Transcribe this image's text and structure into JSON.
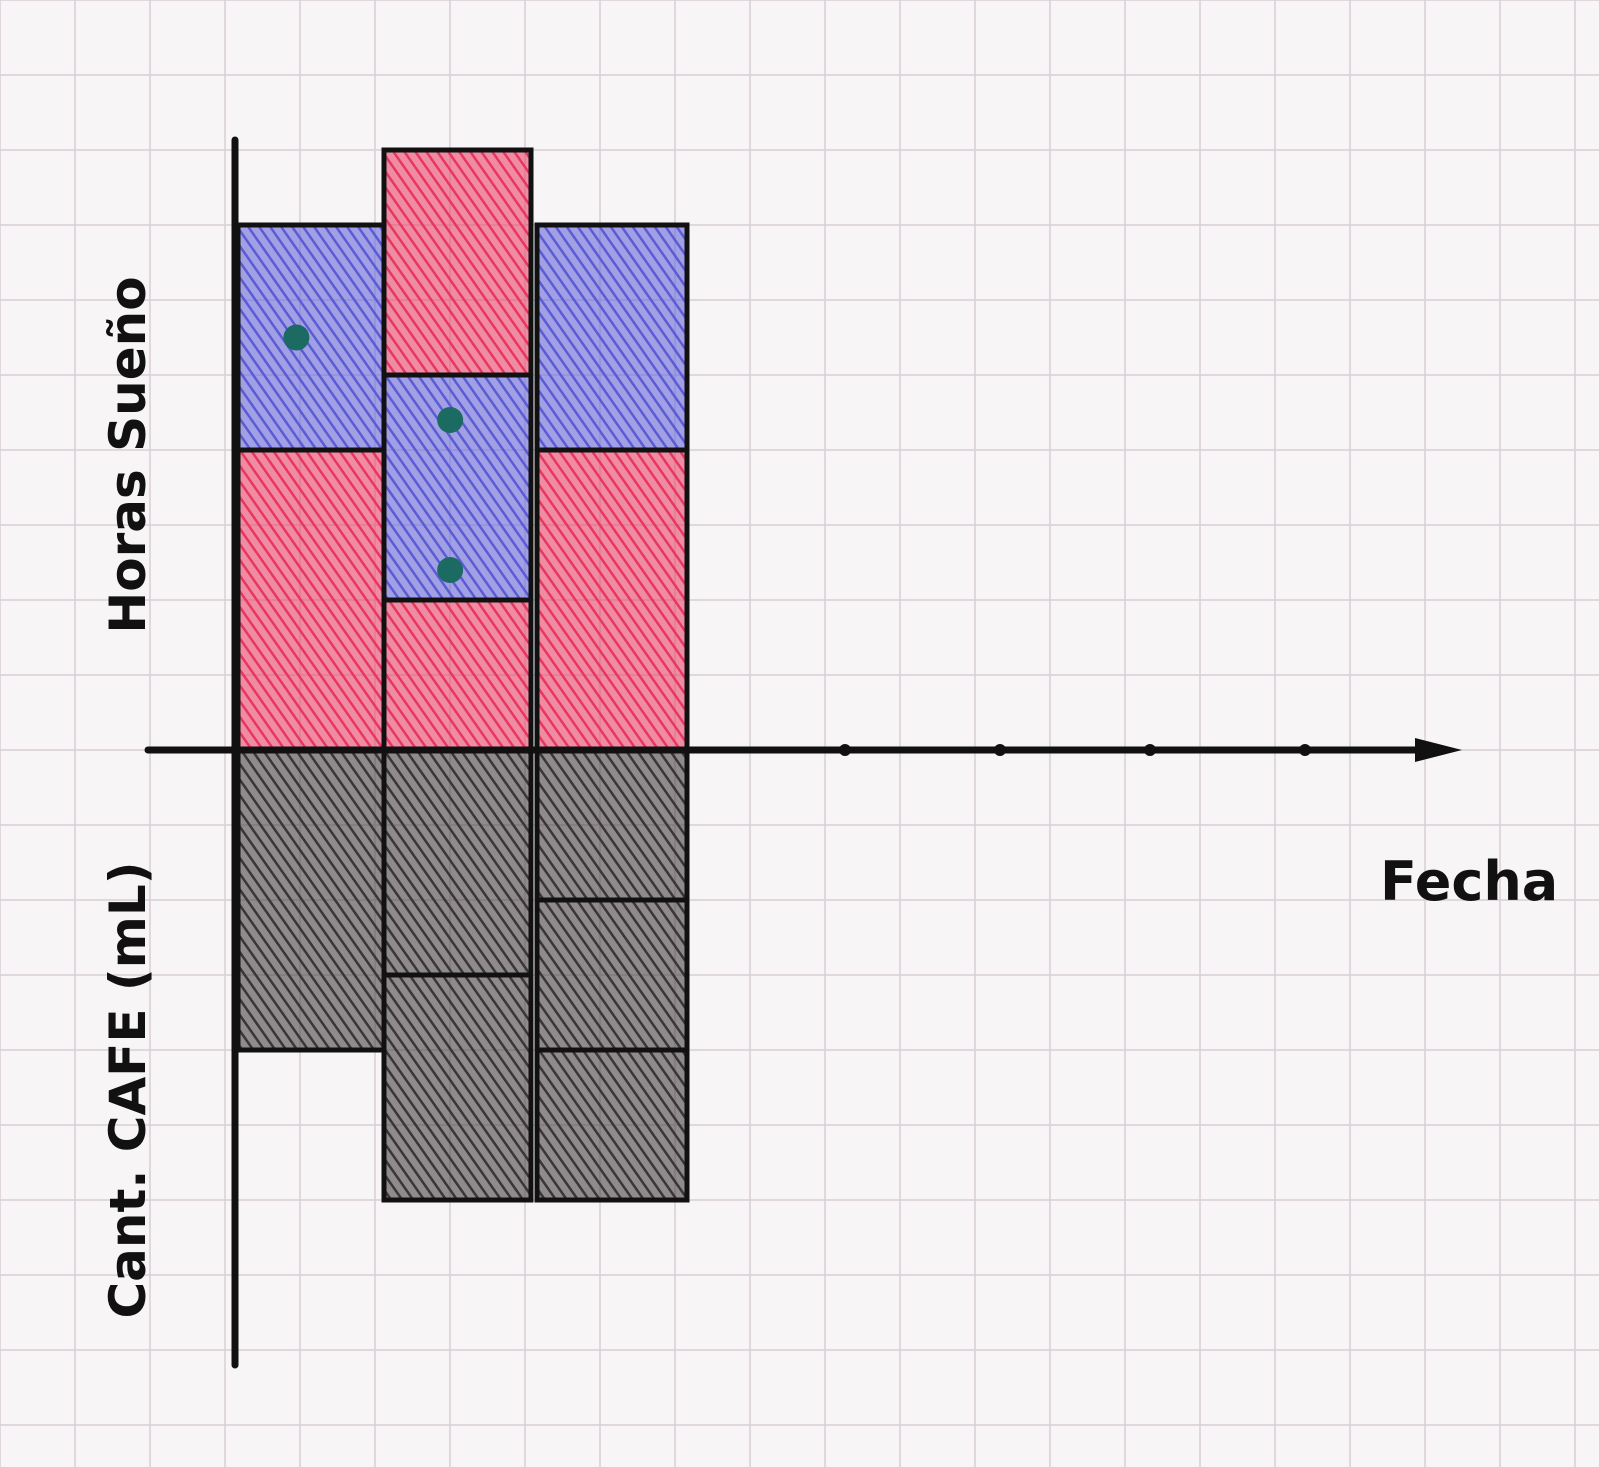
{
  "chart_data": {
    "type": "bar",
    "title": "",
    "xlabel": "Fecha",
    "ylabel_top": "Horas Sueño",
    "ylabel_bottom": "Cant. CAFE (mL)",
    "categories": [
      "",
      "",
      ""
    ],
    "upper": {
      "segments": [
        [
          {
            "value": 3,
            "color": "#5b5bd6"
          },
          {
            "value": 4,
            "color": "#e8365f"
          }
        ],
        [
          {
            "value": 3,
            "color": "#e8365f"
          },
          {
            "value": 3,
            "color": "#5b5bd6"
          },
          {
            "value": 2,
            "color": "#e8365f"
          }
        ],
        [
          {
            "value": 3,
            "color": "#5b5bd6"
          },
          {
            "value": 4,
            "color": "#e8365f"
          }
        ]
      ],
      "markers": [
        {
          "bar": 0,
          "at": 5.5
        },
        {
          "bar": 1,
          "at": 4.4
        },
        {
          "bar": 1,
          "at": 2.4
        }
      ]
    },
    "lower": {
      "segments": [
        [
          {
            "value": 4,
            "color": "#3a3536"
          }
        ],
        [
          {
            "value": 3,
            "color": "#3a3536"
          },
          {
            "value": 3,
            "color": "#3a3536"
          }
        ],
        [
          {
            "value": 2,
            "color": "#3a3536"
          },
          {
            "value": 2,
            "color": "#3a3536"
          },
          {
            "value": 2,
            "color": "#3a3536"
          }
        ]
      ]
    },
    "grid": true,
    "colors": {
      "sleep_blue": "#5b5bd6",
      "sleep_red": "#e8365f",
      "coffee": "#3a3536",
      "marker": "#1c6b63",
      "grid": "#d8cfd6"
    }
  }
}
